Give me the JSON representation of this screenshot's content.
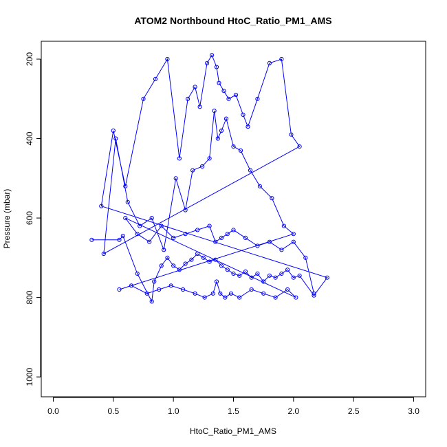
{
  "chart_data": {
    "type": "scatter",
    "title": "ATOM2 Northbound HtoC_Ratio_PM1_AMS",
    "xlabel": "HtoC_Ratio_PM1_AMS",
    "ylabel": "Pressure (mbar)",
    "xlim": [
      -0.1,
      3.1
    ],
    "ylim": [
      1050,
      155
    ],
    "y_reversed": true,
    "x_ticks": [
      "0.0",
      "0.5",
      "1.0",
      "1.5",
      "2.0",
      "2.5",
      "3.0"
    ],
    "x_tick_values": [
      0,
      0.5,
      1.0,
      1.5,
      2.0,
      2.5,
      3.0
    ],
    "y_ticks": [
      "200",
      "400",
      "600",
      "800",
      "1000"
    ],
    "y_tick_values": [
      200,
      400,
      600,
      800,
      1000
    ],
    "grid": false,
    "legend": "none",
    "series_color": "#0000ff",
    "series": [
      {
        "points_description": "approximate",
        "x": [
          0.32,
          0.55,
          0.58,
          0.7,
          0.82,
          0.84,
          0.9,
          0.95,
          1.0,
          1.05,
          1.1,
          1.15,
          1.2,
          1.25,
          1.3,
          1.35,
          1.4,
          1.45,
          1.5,
          1.55,
          1.6,
          1.65,
          1.7,
          1.75,
          1.8,
          1.85,
          1.9,
          1.95,
          2.0,
          2.05,
          2.17,
          2.28,
          0.4,
          0.5,
          0.6,
          0.75,
          0.85,
          0.95,
          1.05,
          1.12,
          1.18,
          1.22,
          1.28,
          1.32,
          1.36,
          1.38,
          1.42,
          1.46,
          1.52,
          1.58,
          1.62,
          1.7,
          1.8,
          1.9,
          1.98,
          2.05,
          0.42,
          0.52,
          0.62,
          0.72,
          0.82,
          0.92,
          1.02,
          1.1,
          1.16,
          1.24,
          1.3,
          1.34,
          1.37,
          1.4,
          1.44,
          1.5,
          1.56,
          1.64,
          1.72,
          1.82,
          1.92,
          2.0,
          0.55,
          0.65,
          0.78,
          0.88,
          0.98,
          1.08,
          1.18,
          1.26,
          1.33,
          1.36,
          1.39,
          1.43,
          1.48,
          1.55,
          1.65,
          1.75,
          1.85,
          1.95,
          2.02,
          0.6,
          0.7,
          0.8,
          0.9,
          1.0,
          1.1,
          1.2,
          1.3,
          1.35,
          1.4,
          1.45,
          1.5,
          1.6,
          1.7,
          1.8,
          1.9,
          2.0,
          2.1,
          2.17
        ],
        "y": [
          655,
          655,
          645,
          740,
          810,
          760,
          720,
          700,
          720,
          730,
          715,
          705,
          690,
          700,
          710,
          705,
          720,
          730,
          740,
          745,
          735,
          750,
          740,
          760,
          745,
          750,
          740,
          730,
          750,
          745,
          795,
          750,
          570,
          380,
          520,
          300,
          250,
          200,
          450,
          300,
          270,
          320,
          210,
          190,
          220,
          260,
          280,
          300,
          290,
          340,
          370,
          300,
          210,
          200,
          390,
          420,
          690,
          400,
          560,
          620,
          600,
          680,
          500,
          580,
          480,
          470,
          450,
          330,
          400,
          380,
          350,
          420,
          430,
          480,
          520,
          550,
          620,
          640,
          780,
          770,
          790,
          780,
          770,
          780,
          790,
          800,
          790,
          760,
          790,
          800,
          790,
          800,
          780,
          790,
          800,
          780,
          800,
          600,
          640,
          660,
          620,
          650,
          640,
          630,
          620,
          660,
          650,
          640,
          630,
          650,
          670,
          660,
          680,
          660,
          700,
          790
        ]
      }
    ]
  }
}
